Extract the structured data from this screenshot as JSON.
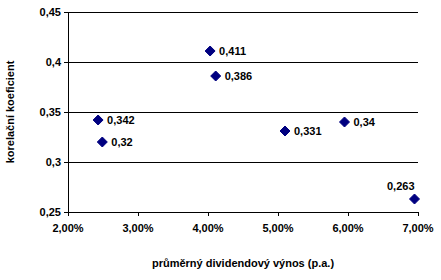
{
  "chart_data": {
    "type": "scatter",
    "x_label": "průměrný dividendový výnos (p.a.)",
    "y_label": "korelační koeficient",
    "x": [
      2.43,
      2.49,
      4.03,
      4.11,
      5.1,
      5.95,
      6.95
    ],
    "values": [
      0.342,
      0.32,
      0.411,
      0.386,
      0.331,
      0.34,
      0.263
    ],
    "value_labels": [
      "0,342",
      "0,32",
      "0,411",
      "0,386",
      "0,331",
      "0,34",
      "0,263"
    ],
    "color": "#000080",
    "marker": "diamond",
    "data_labels": true,
    "grid": true,
    "xlim": [
      2,
      7
    ],
    "xticks": [
      {
        "value": 2,
        "label": "2,00%"
      },
      {
        "value": 3,
        "label": "3,00%"
      },
      {
        "value": 4,
        "label": "4,00%"
      },
      {
        "value": 5,
        "label": "5,00%"
      },
      {
        "value": 6,
        "label": "6,00%"
      },
      {
        "value": 7,
        "label": "7,00%"
      }
    ],
    "ylim": [
      0.25,
      0.45
    ],
    "yticks": [
      {
        "value": 0.25,
        "label": "0,25"
      },
      {
        "value": 0.3,
        "label": "0,3"
      },
      {
        "value": 0.35,
        "label": "0,35"
      },
      {
        "value": 0.4,
        "label": "0,4"
      },
      {
        "value": 0.45,
        "label": "0,45"
      }
    ]
  }
}
